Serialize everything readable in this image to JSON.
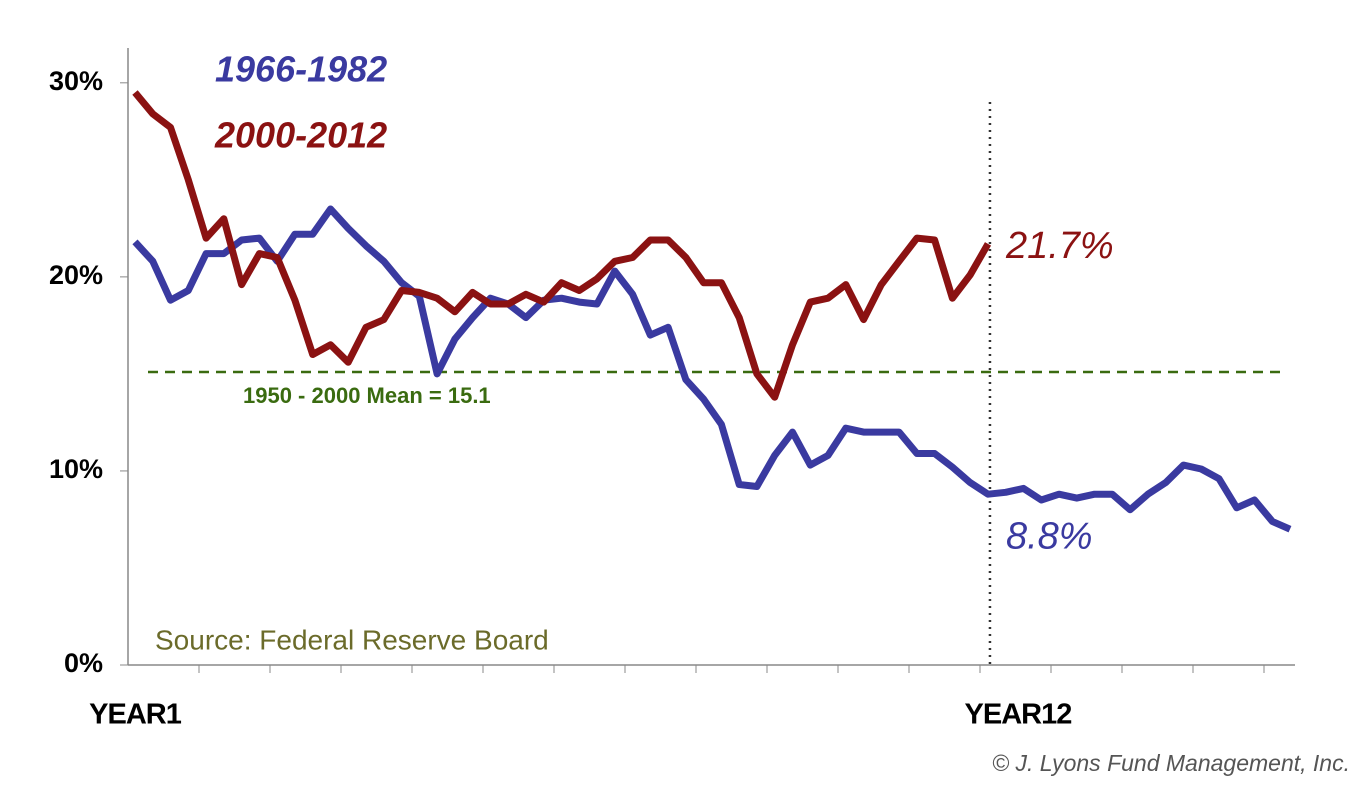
{
  "chart_data": {
    "type": "line",
    "categories": [
      "YEAR1",
      null,
      null,
      null,
      null,
      null,
      null,
      null,
      null,
      null,
      null,
      null,
      null,
      null,
      null,
      null,
      null,
      null,
      null,
      null,
      null,
      null,
      null,
      null,
      null,
      null,
      null,
      null,
      null,
      null,
      null,
      null,
      null,
      null,
      null,
      null,
      null,
      null,
      null,
      null,
      null,
      null,
      null,
      null,
      null,
      null,
      null,
      null,
      "YEAR12",
      null,
      null,
      null,
      null,
      null,
      null,
      null,
      null,
      null,
      null,
      null,
      null,
      null,
      null,
      null,
      null,
      null
    ],
    "series": [
      {
        "name": "1966-1982",
        "color": "#3a3aa0",
        "values": [
          21.8,
          20.8,
          18.8,
          19.3,
          21.2,
          21.2,
          21.9,
          22.0,
          20.8,
          22.2,
          22.2,
          23.5,
          22.5,
          21.6,
          20.8,
          19.7,
          19.0,
          15.0,
          16.8,
          17.9,
          18.9,
          18.6,
          17.9,
          18.8,
          18.9,
          18.7,
          18.6,
          20.3,
          19.1,
          17.0,
          17.4,
          14.7,
          13.7,
          12.4,
          9.3,
          9.2,
          10.8,
          12.0,
          10.3,
          10.8,
          12.2,
          12.0,
          12.0,
          12.0,
          10.9,
          10.9,
          10.2,
          9.4,
          8.8,
          8.9,
          9.1,
          8.5,
          8.8,
          8.6,
          8.8,
          8.8,
          8.0,
          8.8,
          9.4,
          10.3,
          10.1,
          9.6,
          8.1,
          8.5,
          7.4,
          7.0
        ],
        "value_labels": [
          null,
          null,
          null,
          null,
          null,
          null,
          null,
          null,
          null,
          null,
          null,
          null,
          null,
          null,
          null,
          null,
          null,
          null,
          null,
          null,
          null,
          null,
          null,
          null,
          null,
          null,
          null,
          null,
          null,
          null,
          null,
          null,
          null,
          null,
          null,
          null,
          null,
          null,
          null,
          null,
          null,
          null,
          null,
          null,
          null,
          null,
          null,
          null,
          "8.8%",
          null,
          null,
          null,
          null,
          null,
          null,
          null,
          null,
          null,
          null,
          null,
          null,
          null,
          null,
          null,
          null,
          null
        ]
      },
      {
        "name": "2000-2012",
        "color": "#8b1212",
        "values": [
          29.5,
          28.4,
          27.7,
          25.0,
          22.0,
          23.0,
          19.6,
          21.2,
          21.0,
          18.8,
          16.0,
          16.5,
          15.6,
          17.4,
          17.8,
          19.3,
          19.2,
          18.9,
          18.2,
          19.2,
          18.6,
          18.6,
          19.1,
          18.7,
          19.7,
          19.3,
          19.9,
          20.8,
          21.0,
          21.9,
          21.9,
          21.0,
          19.7,
          19.7,
          17.9,
          15.0,
          13.8,
          16.5,
          18.7,
          18.9,
          19.6,
          17.8,
          19.6,
          20.8,
          22.0,
          21.9,
          18.9,
          20.1,
          21.7,
          null,
          null,
          null,
          null,
          null,
          null,
          null,
          null,
          null,
          null,
          null,
          null,
          null,
          null,
          null,
          null,
          null
        ],
        "value_labels": [
          null,
          null,
          null,
          null,
          null,
          null,
          null,
          null,
          null,
          null,
          null,
          null,
          null,
          null,
          null,
          null,
          null,
          null,
          null,
          null,
          null,
          null,
          null,
          null,
          null,
          null,
          null,
          null,
          null,
          null,
          null,
          null,
          null,
          null,
          null,
          null,
          null,
          null,
          null,
          null,
          null,
          null,
          null,
          null,
          null,
          null,
          null,
          null,
          "21.7%",
          null,
          null,
          null,
          null,
          null,
          null,
          null,
          null,
          null,
          null,
          null,
          null,
          null,
          null,
          null,
          null,
          null
        ]
      }
    ],
    "ylim": [
      0,
      32
    ],
    "yticks": [
      {
        "value": 0,
        "label": "0%"
      },
      {
        "value": 10,
        "label": "10%"
      },
      {
        "value": 20,
        "label": "20%"
      },
      {
        "value": 30,
        "label": "30%"
      }
    ],
    "mean_line": {
      "value": 15.1,
      "label": "1950 - 2000 Mean = 15.1",
      "color": "#3a6b10"
    },
    "source": "Source: Federal Reserve Board",
    "copyright": "© J. Lyons Fund Management, Inc."
  }
}
